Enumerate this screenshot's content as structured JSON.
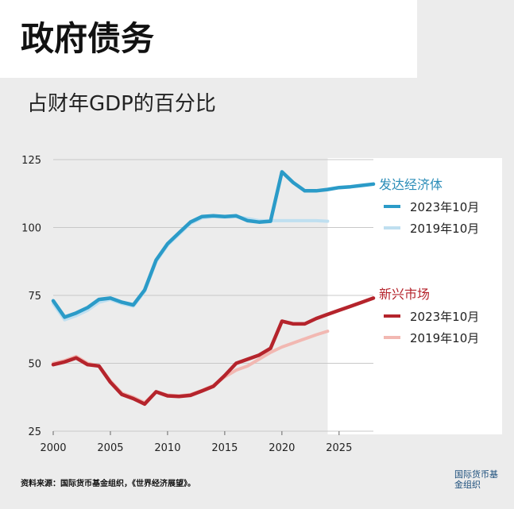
{
  "header": {
    "title": "政府债务",
    "subtitle": "占财年GDP的百分比"
  },
  "footer": {
    "source": "资料来源：国际货币基金组织，《世界经济展望》。",
    "logo_text": "国际货币基金组织"
  },
  "colors": {
    "advanced_2023": "#2b9bc8",
    "advanced_2019": "#bfdff0",
    "emerging_2023": "#b5242c",
    "emerging_2019": "#f2b8b2",
    "grid": "#c8c8c8",
    "forecast_band": "#ffffff",
    "advanced_label": "#2b8db8",
    "emerging_label": "#b5242c"
  },
  "chart_data": {
    "type": "line",
    "title": "",
    "xlabel": "",
    "ylabel": "",
    "xlim": [
      2000,
      2028
    ],
    "ylim": [
      25,
      125
    ],
    "x_ticks": [
      2000,
      2005,
      2010,
      2015,
      2020,
      2025
    ],
    "y_ticks": [
      25,
      50,
      75,
      100,
      125
    ],
    "grid": true,
    "forecast_shading_from": 2024,
    "groups": [
      {
        "name": "发达经济体",
        "series": [
          {
            "name": "2023年10月",
            "x": [
              2000,
              2001,
              2002,
              2003,
              2004,
              2005,
              2006,
              2007,
              2008,
              2009,
              2010,
              2011,
              2012,
              2013,
              2014,
              2015,
              2016,
              2017,
              2018,
              2019,
              2020,
              2021,
              2022,
              2023,
              2024,
              2025,
              2026,
              2027,
              2028
            ],
            "values": [
              73,
              67,
              68.5,
              70.5,
              73.5,
              74,
              72.5,
              71.5,
              77,
              88,
              94,
              98,
              102,
              104,
              104.3,
              104,
              104.3,
              102.5,
              102,
              102.3,
              120.5,
              116.5,
              113.5,
              113.5,
              114,
              114.7,
              115,
              115.5,
              116
            ]
          },
          {
            "name": "2019年10月",
            "x": [
              2000,
              2001,
              2002,
              2003,
              2004,
              2005,
              2006,
              2007,
              2008,
              2009,
              2010,
              2011,
              2012,
              2013,
              2014,
              2015,
              2016,
              2017,
              2018,
              2019,
              2020,
              2021,
              2022,
              2023,
              2024
            ],
            "values": [
              72,
              66,
              67.5,
              69.5,
              72.5,
              73.5,
              72,
              71,
              76.5,
              87.5,
              93.5,
              97.5,
              101.5,
              103.5,
              104,
              103.8,
              104,
              103.3,
              102.5,
              102.5,
              102.5,
              102.5,
              102.5,
              102.5,
              102.3
            ]
          }
        ]
      },
      {
        "name": "新兴市场",
        "series": [
          {
            "name": "2023年10月",
            "x": [
              2000,
              2001,
              2002,
              2003,
              2004,
              2005,
              2006,
              2007,
              2008,
              2009,
              2010,
              2011,
              2012,
              2013,
              2014,
              2015,
              2016,
              2017,
              2018,
              2019,
              2020,
              2021,
              2022,
              2023,
              2024,
              2025,
              2026,
              2027,
              2028
            ],
            "values": [
              49.5,
              50.5,
              52,
              49.5,
              49,
              43,
              38.5,
              37,
              35,
              39.5,
              38,
              37.8,
              38.2,
              39.8,
              41.5,
              45.5,
              50,
              51.5,
              53,
              55.5,
              65.5,
              64.5,
              64.5,
              66.5,
              68,
              69.5,
              71,
              72.5,
              74
            ]
          },
          {
            "name": "2019年10月",
            "x": [
              2000,
              2001,
              2002,
              2003,
              2004,
              2005,
              2006,
              2007,
              2008,
              2009,
              2010,
              2011,
              2012,
              2013,
              2014,
              2015,
              2016,
              2017,
              2018,
              2019,
              2020,
              2021,
              2022,
              2023,
              2024
            ],
            "values": [
              50,
              51,
              52.5,
              50,
              49,
              43.5,
              39,
              37.5,
              35.5,
              39.5,
              38.3,
              38,
              38.5,
              40,
              41.8,
              45,
              47.5,
              49,
              51.5,
              54,
              56,
              57.5,
              59,
              60.5,
              61.8
            ]
          }
        ]
      }
    ]
  }
}
